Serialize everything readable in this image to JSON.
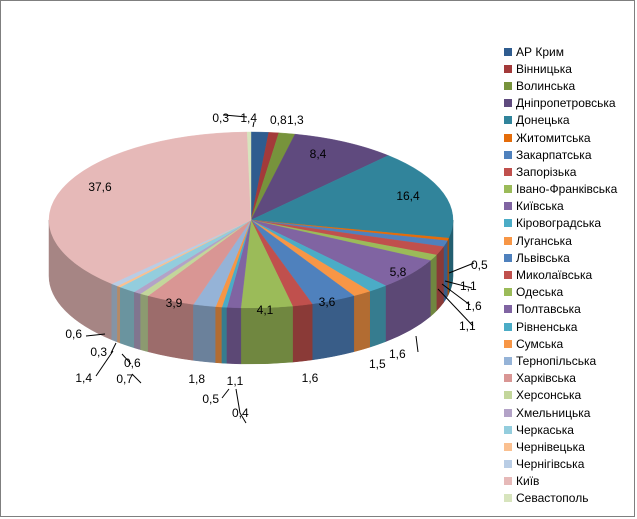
{
  "chart_data": {
    "type": "pie",
    "title": "",
    "legend_position": "right",
    "slices": [
      {
        "label": "АР Крим",
        "value": 1.4,
        "value_label": "1,4",
        "color": "#2f5c8f"
      },
      {
        "label": "Вінницька",
        "value": 0.8,
        "value_label": "0,8",
        "color": "#a33a3a"
      },
      {
        "label": "Волинська",
        "value": 1.3,
        "value_label": "1,3",
        "color": "#77933c"
      },
      {
        "label": "Дніпропетровська",
        "value": 8.4,
        "value_label": "8,4",
        "color": "#5f4a7e"
      },
      {
        "label": "Донецька",
        "value": 16.4,
        "value_label": "16,4",
        "color": "#31849b"
      },
      {
        "label": "Житомитська",
        "value": 0.5,
        "value_label": "0,5",
        "color": "#e46c0a"
      },
      {
        "label": "Закарпатська",
        "value": 1.1,
        "value_label": "1,1",
        "color": "#4f81bd"
      },
      {
        "label": "Запорізька",
        "value": 1.6,
        "value_label": "1,6",
        "color": "#c0504d"
      },
      {
        "label": "Івано-Франківська",
        "value": 1.1,
        "value_label": "1,1",
        "color": "#9bbb59"
      },
      {
        "label": "Київська",
        "value": 5.8,
        "value_label": "5,8",
        "color": "#8064a2"
      },
      {
        "label": "Кіровоградська",
        "value": 1.6,
        "value_label": "1,6",
        "color": "#4bacc6"
      },
      {
        "label": "Луганська",
        "value": 1.5,
        "value_label": "1,5",
        "color": "#f79646"
      },
      {
        "label": "Львівська",
        "value": 3.6,
        "value_label": "3,6",
        "color": "#4f81bd"
      },
      {
        "label": "Миколаївська",
        "value": 1.6,
        "value_label": "1,6",
        "color": "#c0504d"
      },
      {
        "label": "Одеська",
        "value": 4.1,
        "value_label": "4,1",
        "color": "#9bbb59"
      },
      {
        "label": "Полтавська",
        "value": 1.1,
        "value_label": "1,1",
        "color": "#8064a2"
      },
      {
        "label": "Рівненська",
        "value": 0.4,
        "value_label": "0,4",
        "color": "#4bacc6"
      },
      {
        "label": "Сумська",
        "value": 0.5,
        "value_label": "0,5",
        "color": "#f79646"
      },
      {
        "label": "Тернопільська",
        "value": 1.8,
        "value_label": "1,8",
        "color": "#95b3d7"
      },
      {
        "label": "Харківська",
        "value": 3.9,
        "value_label": "3,9",
        "color": "#d99694"
      },
      {
        "label": "Херсонська",
        "value": 0.7,
        "value_label": "0,7",
        "color": "#c3d69b"
      },
      {
        "label": "Хмельницька",
        "value": 0.6,
        "value_label": "0,6",
        "color": "#b3a2c7"
      },
      {
        "label": "Черкаська",
        "value": 1.4,
        "value_label": "1,4",
        "color": "#93cddd"
      },
      {
        "label": "Чернівецька",
        "value": 0.3,
        "value_label": "0,3",
        "color": "#fac090"
      },
      {
        "label": "Чернігівська",
        "value": 0.6,
        "value_label": "0,6",
        "color": "#b9cde5"
      },
      {
        "label": "Київ",
        "value": 37.6,
        "value_label": "37,6",
        "color": "#e6b9b8"
      },
      {
        "label": "Севастополь",
        "value": 0.3,
        "value_label": "0,3",
        "color": "#d7e4bd"
      }
    ]
  }
}
